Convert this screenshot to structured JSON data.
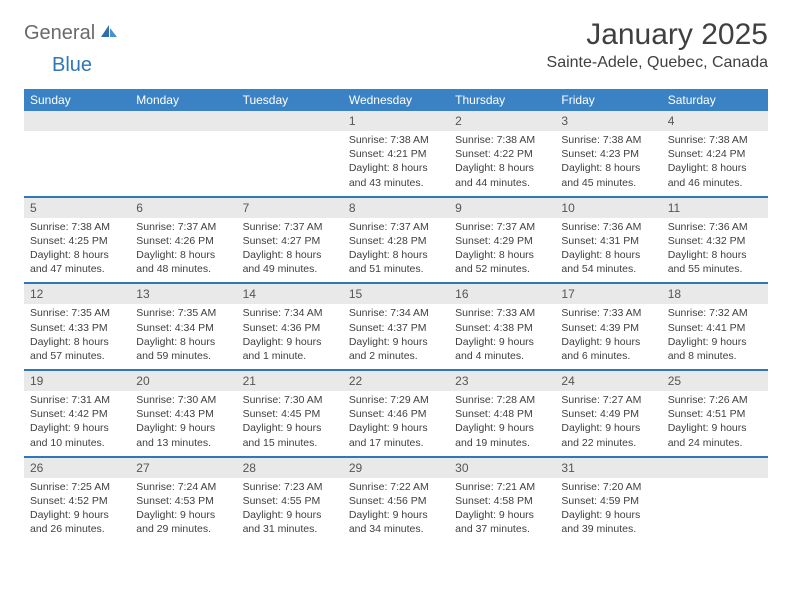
{
  "logo": {
    "part1": "General",
    "part2": "Blue"
  },
  "title": "January 2025",
  "location": "Sainte-Adele, Quebec, Canada",
  "colors": {
    "header_blue": "#3b82c4",
    "rule_blue": "#2f77b8",
    "daynum_bg": "#e9e9e9",
    "text": "#404040",
    "logo_gray": "#6a6a6a",
    "logo_blue": "#2f77b8"
  },
  "weekdays": [
    "Sunday",
    "Monday",
    "Tuesday",
    "Wednesday",
    "Thursday",
    "Friday",
    "Saturday"
  ],
  "weeks": [
    [
      null,
      null,
      null,
      {
        "n": "1",
        "sr": "Sunrise: 7:38 AM",
        "ss": "Sunset: 4:21 PM",
        "d1": "Daylight: 8 hours",
        "d2": "and 43 minutes."
      },
      {
        "n": "2",
        "sr": "Sunrise: 7:38 AM",
        "ss": "Sunset: 4:22 PM",
        "d1": "Daylight: 8 hours",
        "d2": "and 44 minutes."
      },
      {
        "n": "3",
        "sr": "Sunrise: 7:38 AM",
        "ss": "Sunset: 4:23 PM",
        "d1": "Daylight: 8 hours",
        "d2": "and 45 minutes."
      },
      {
        "n": "4",
        "sr": "Sunrise: 7:38 AM",
        "ss": "Sunset: 4:24 PM",
        "d1": "Daylight: 8 hours",
        "d2": "and 46 minutes."
      }
    ],
    [
      {
        "n": "5",
        "sr": "Sunrise: 7:38 AM",
        "ss": "Sunset: 4:25 PM",
        "d1": "Daylight: 8 hours",
        "d2": "and 47 minutes."
      },
      {
        "n": "6",
        "sr": "Sunrise: 7:37 AM",
        "ss": "Sunset: 4:26 PM",
        "d1": "Daylight: 8 hours",
        "d2": "and 48 minutes."
      },
      {
        "n": "7",
        "sr": "Sunrise: 7:37 AM",
        "ss": "Sunset: 4:27 PM",
        "d1": "Daylight: 8 hours",
        "d2": "and 49 minutes."
      },
      {
        "n": "8",
        "sr": "Sunrise: 7:37 AM",
        "ss": "Sunset: 4:28 PM",
        "d1": "Daylight: 8 hours",
        "d2": "and 51 minutes."
      },
      {
        "n": "9",
        "sr": "Sunrise: 7:37 AM",
        "ss": "Sunset: 4:29 PM",
        "d1": "Daylight: 8 hours",
        "d2": "and 52 minutes."
      },
      {
        "n": "10",
        "sr": "Sunrise: 7:36 AM",
        "ss": "Sunset: 4:31 PM",
        "d1": "Daylight: 8 hours",
        "d2": "and 54 minutes."
      },
      {
        "n": "11",
        "sr": "Sunrise: 7:36 AM",
        "ss": "Sunset: 4:32 PM",
        "d1": "Daylight: 8 hours",
        "d2": "and 55 minutes."
      }
    ],
    [
      {
        "n": "12",
        "sr": "Sunrise: 7:35 AM",
        "ss": "Sunset: 4:33 PM",
        "d1": "Daylight: 8 hours",
        "d2": "and 57 minutes."
      },
      {
        "n": "13",
        "sr": "Sunrise: 7:35 AM",
        "ss": "Sunset: 4:34 PM",
        "d1": "Daylight: 8 hours",
        "d2": "and 59 minutes."
      },
      {
        "n": "14",
        "sr": "Sunrise: 7:34 AM",
        "ss": "Sunset: 4:36 PM",
        "d1": "Daylight: 9 hours",
        "d2": "and 1 minute."
      },
      {
        "n": "15",
        "sr": "Sunrise: 7:34 AM",
        "ss": "Sunset: 4:37 PM",
        "d1": "Daylight: 9 hours",
        "d2": "and 2 minutes."
      },
      {
        "n": "16",
        "sr": "Sunrise: 7:33 AM",
        "ss": "Sunset: 4:38 PM",
        "d1": "Daylight: 9 hours",
        "d2": "and 4 minutes."
      },
      {
        "n": "17",
        "sr": "Sunrise: 7:33 AM",
        "ss": "Sunset: 4:39 PM",
        "d1": "Daylight: 9 hours",
        "d2": "and 6 minutes."
      },
      {
        "n": "18",
        "sr": "Sunrise: 7:32 AM",
        "ss": "Sunset: 4:41 PM",
        "d1": "Daylight: 9 hours",
        "d2": "and 8 minutes."
      }
    ],
    [
      {
        "n": "19",
        "sr": "Sunrise: 7:31 AM",
        "ss": "Sunset: 4:42 PM",
        "d1": "Daylight: 9 hours",
        "d2": "and 10 minutes."
      },
      {
        "n": "20",
        "sr": "Sunrise: 7:30 AM",
        "ss": "Sunset: 4:43 PM",
        "d1": "Daylight: 9 hours",
        "d2": "and 13 minutes."
      },
      {
        "n": "21",
        "sr": "Sunrise: 7:30 AM",
        "ss": "Sunset: 4:45 PM",
        "d1": "Daylight: 9 hours",
        "d2": "and 15 minutes."
      },
      {
        "n": "22",
        "sr": "Sunrise: 7:29 AM",
        "ss": "Sunset: 4:46 PM",
        "d1": "Daylight: 9 hours",
        "d2": "and 17 minutes."
      },
      {
        "n": "23",
        "sr": "Sunrise: 7:28 AM",
        "ss": "Sunset: 4:48 PM",
        "d1": "Daylight: 9 hours",
        "d2": "and 19 minutes."
      },
      {
        "n": "24",
        "sr": "Sunrise: 7:27 AM",
        "ss": "Sunset: 4:49 PM",
        "d1": "Daylight: 9 hours",
        "d2": "and 22 minutes."
      },
      {
        "n": "25",
        "sr": "Sunrise: 7:26 AM",
        "ss": "Sunset: 4:51 PM",
        "d1": "Daylight: 9 hours",
        "d2": "and 24 minutes."
      }
    ],
    [
      {
        "n": "26",
        "sr": "Sunrise: 7:25 AM",
        "ss": "Sunset: 4:52 PM",
        "d1": "Daylight: 9 hours",
        "d2": "and 26 minutes."
      },
      {
        "n": "27",
        "sr": "Sunrise: 7:24 AM",
        "ss": "Sunset: 4:53 PM",
        "d1": "Daylight: 9 hours",
        "d2": "and 29 minutes."
      },
      {
        "n": "28",
        "sr": "Sunrise: 7:23 AM",
        "ss": "Sunset: 4:55 PM",
        "d1": "Daylight: 9 hours",
        "d2": "and 31 minutes."
      },
      {
        "n": "29",
        "sr": "Sunrise: 7:22 AM",
        "ss": "Sunset: 4:56 PM",
        "d1": "Daylight: 9 hours",
        "d2": "and 34 minutes."
      },
      {
        "n": "30",
        "sr": "Sunrise: 7:21 AM",
        "ss": "Sunset: 4:58 PM",
        "d1": "Daylight: 9 hours",
        "d2": "and 37 minutes."
      },
      {
        "n": "31",
        "sr": "Sunrise: 7:20 AM",
        "ss": "Sunset: 4:59 PM",
        "d1": "Daylight: 9 hours",
        "d2": "and 39 minutes."
      },
      null
    ]
  ]
}
